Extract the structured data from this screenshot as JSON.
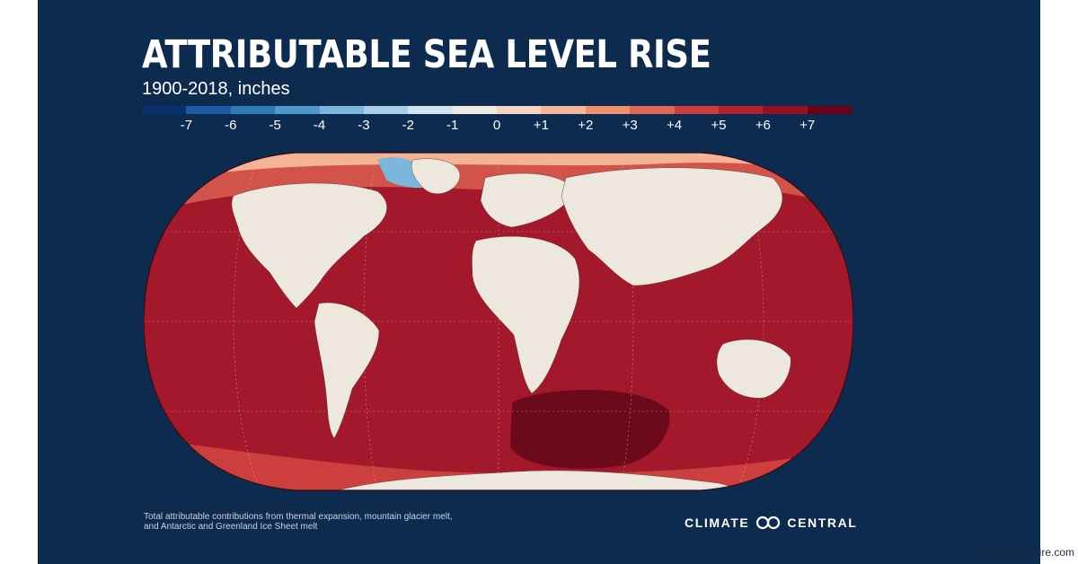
{
  "header": {
    "title": "ATTRIBUTABLE SEA LEVEL RISE",
    "subtitle": "1900-2018, inches"
  },
  "legend": {
    "ticks": [
      "-7",
      "-6",
      "-5",
      "-4",
      "-3",
      "-2",
      "-1",
      "0",
      "+1",
      "+2",
      "+3",
      "+4",
      "+5",
      "+6",
      "+7"
    ],
    "colors": [
      "#08306b",
      "#1c5aa3",
      "#2f79ba",
      "#4f98cd",
      "#7bb6dd",
      "#a7cfe8",
      "#d2e5f2",
      "#f2ebe4",
      "#f7d4c1",
      "#f5b79a",
      "#ee8f6e",
      "#e06753",
      "#cd3f3e",
      "#b3202f",
      "#960f23",
      "#6b0019"
    ]
  },
  "map": {
    "ocean_color": "#a3182b",
    "land_color": "#eee7de",
    "deep_color": "#6c0a1c"
  },
  "footer": {
    "note_line1": "Total attributable contributions from thermal expansion, mountain glacier melt,",
    "note_line2": "and Antarctic and Greenland Ice Sheet melt",
    "brand_left": "CLIMATE",
    "brand_right": "CENTRAL",
    "brand_icon": "infinity-loop-icon"
  },
  "credit": "www.prnewswire.com"
}
